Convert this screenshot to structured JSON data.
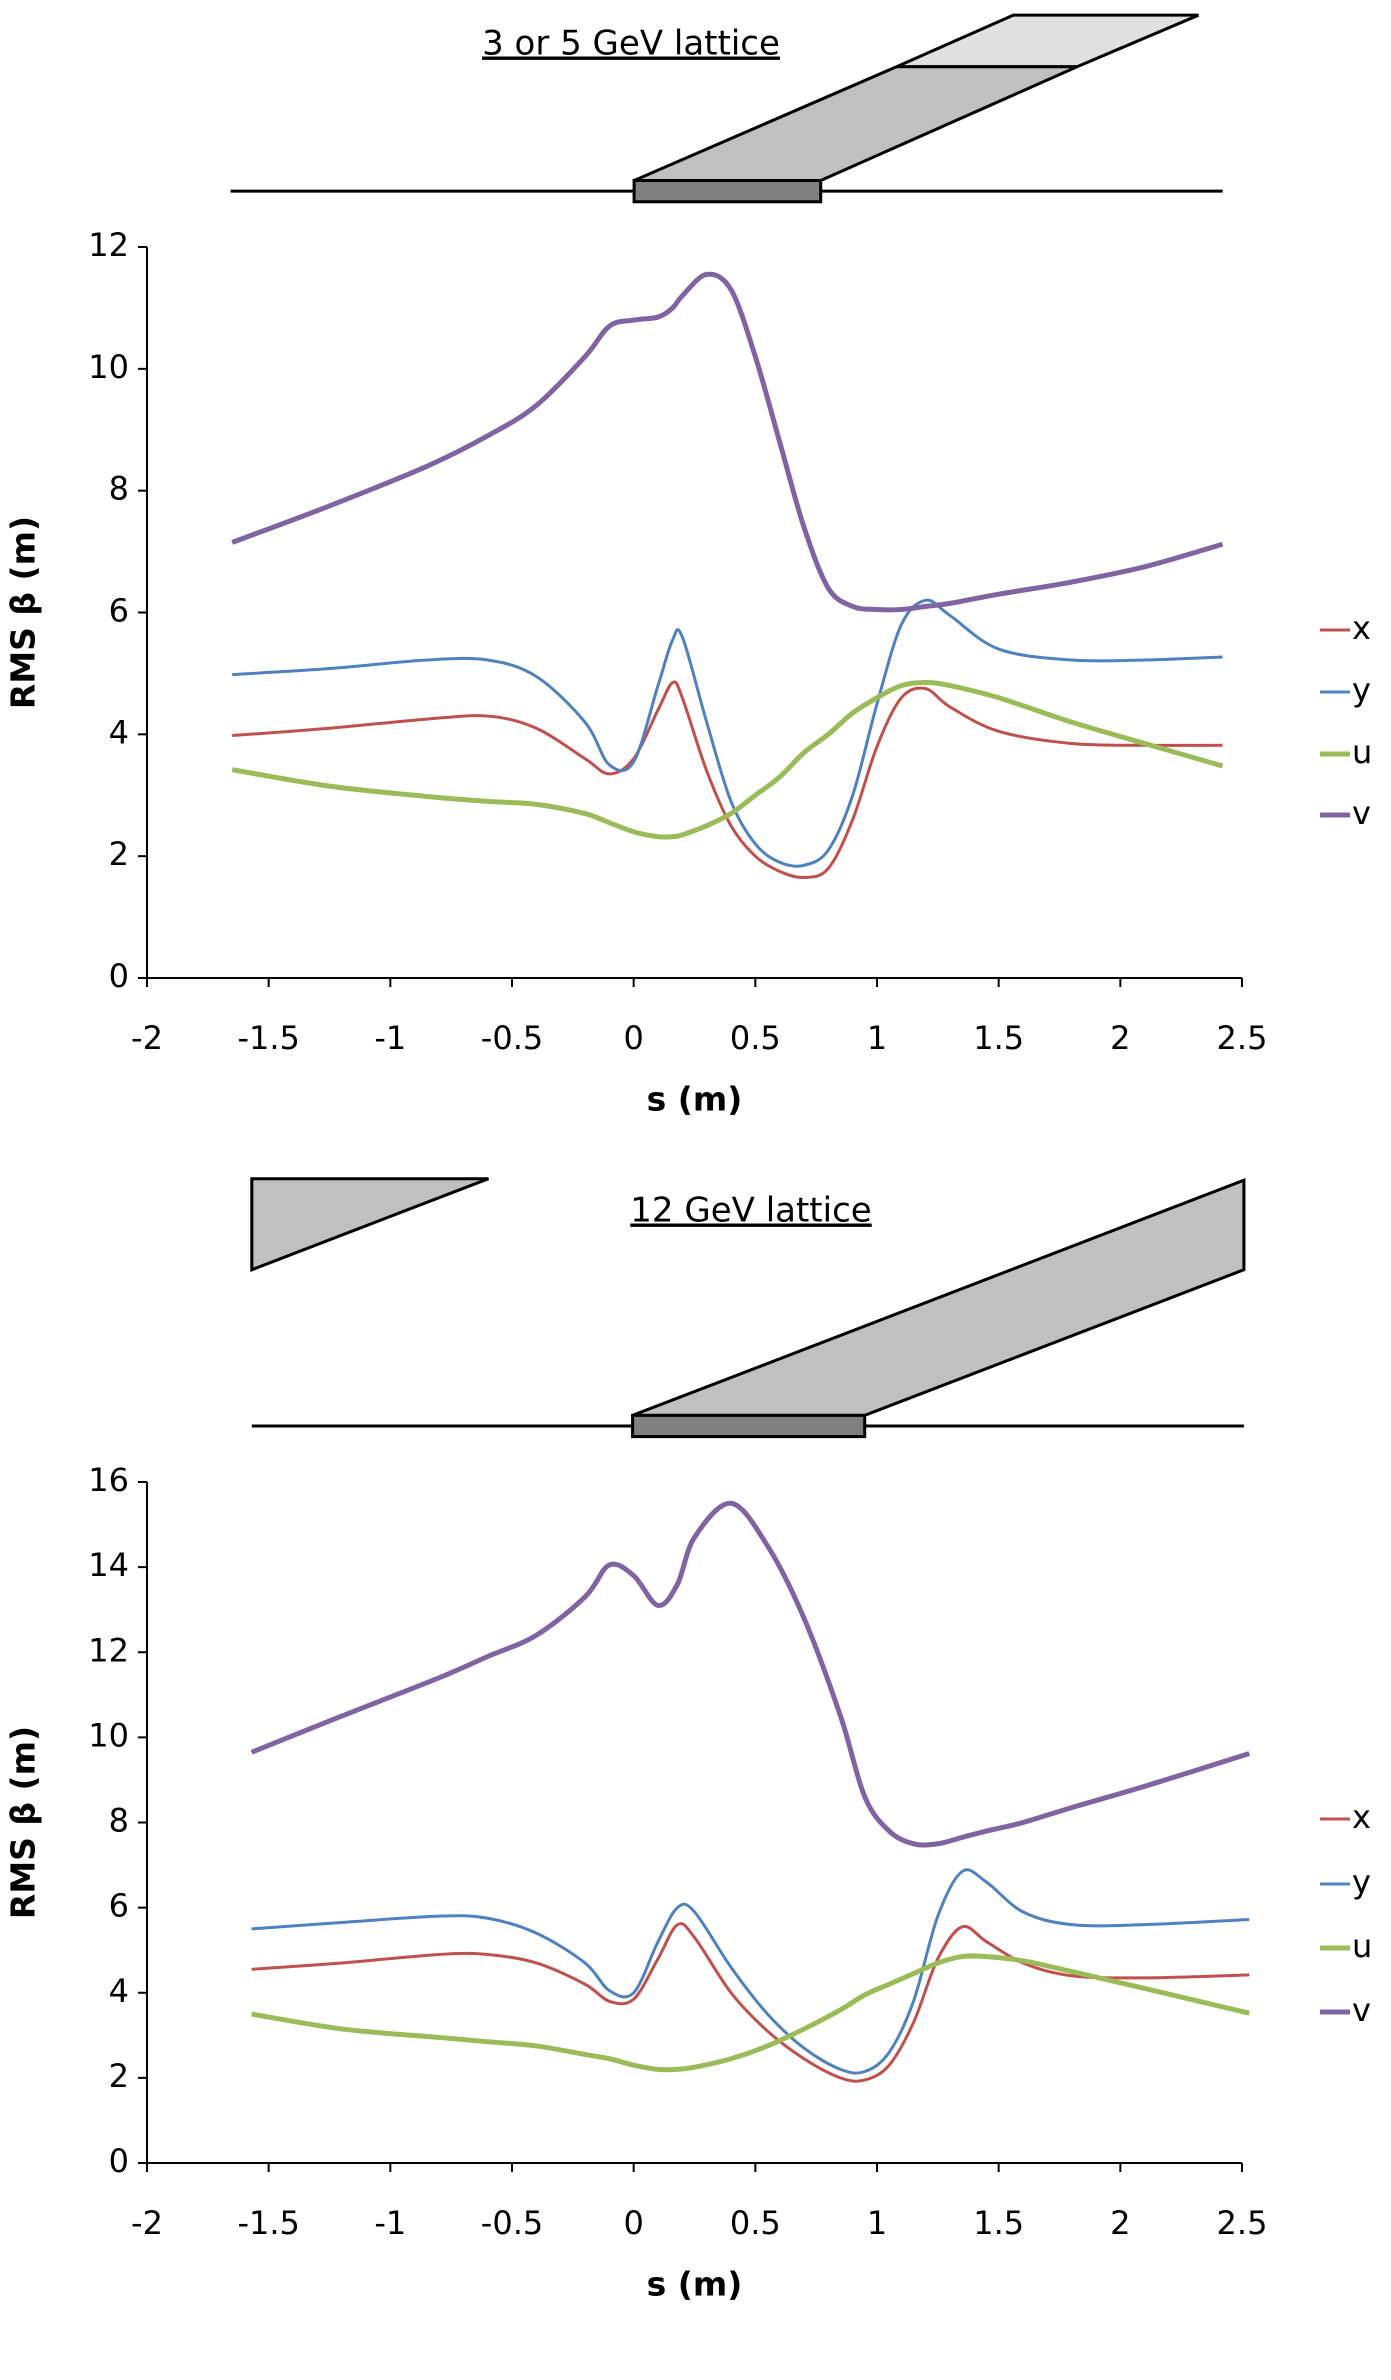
{
  "chart_data": [
    {
      "type": "line",
      "title": "3 or 5 GeV lattice",
      "xlabel": "s (m)",
      "ylabel": "RMS β (m)",
      "xlim": [
        -2,
        2.5
      ],
      "xticks": [
        -2,
        -1.5,
        -1,
        -0.5,
        0,
        0.5,
        1,
        1.5,
        2,
        2.5
      ],
      "ylim": [
        0,
        12
      ],
      "yticks": [
        0,
        2,
        4,
        6,
        8,
        10,
        12
      ],
      "x": [
        -1.65,
        -1.25,
        -0.85,
        -0.6,
        -0.4,
        -0.2,
        -0.1,
        0,
        0.1,
        0.16,
        0.2,
        0.3,
        0.4,
        0.5,
        0.6,
        0.7,
        0.8,
        0.9,
        1.0,
        1.1,
        1.2,
        1.3,
        1.5,
        1.8,
        2.1,
        2.42
      ],
      "series": [
        {
          "name": "x",
          "color": "#c0504d",
          "values": [
            3.98,
            4.1,
            4.25,
            4.3,
            4.1,
            3.6,
            3.35,
            3.6,
            4.4,
            4.85,
            4.6,
            3.4,
            2.5,
            2.0,
            1.75,
            1.65,
            1.8,
            2.6,
            3.8,
            4.6,
            4.75,
            4.45,
            4.05,
            3.85,
            3.82,
            3.82
          ]
        },
        {
          "name": "y",
          "color": "#4f81bd",
          "values": [
            4.98,
            5.08,
            5.22,
            5.22,
            4.95,
            4.2,
            3.5,
            3.55,
            4.8,
            5.55,
            5.6,
            4.2,
            2.9,
            2.2,
            1.9,
            1.85,
            2.1,
            3.0,
            4.5,
            5.8,
            6.2,
            5.95,
            5.4,
            5.22,
            5.22,
            5.27
          ]
        },
        {
          "name": "u",
          "color": "#9bbb59",
          "values": [
            3.42,
            3.15,
            2.98,
            2.9,
            2.85,
            2.7,
            2.55,
            2.4,
            2.32,
            2.32,
            2.35,
            2.5,
            2.7,
            3.0,
            3.3,
            3.7,
            4.0,
            4.35,
            4.6,
            4.8,
            4.85,
            4.8,
            4.6,
            4.2,
            3.85,
            3.48
          ]
        },
        {
          "name": "v",
          "color": "#8064a2",
          "values": [
            7.15,
            7.75,
            8.4,
            8.9,
            9.4,
            10.2,
            10.7,
            10.8,
            10.85,
            11.0,
            11.2,
            11.55,
            11.3,
            10.2,
            8.8,
            7.4,
            6.4,
            6.1,
            6.05,
            6.05,
            6.1,
            6.15,
            6.3,
            6.5,
            6.75,
            7.12
          ]
        }
      ]
    },
    {
      "type": "line",
      "title": "12 GeV lattice",
      "xlabel": "s (m)",
      "ylabel": "RMS β (m)",
      "xlim": [
        -2,
        2.5
      ],
      "xticks": [
        -2,
        -1.5,
        -1,
        -0.5,
        0,
        0.5,
        1,
        1.5,
        2,
        2.5
      ],
      "ylim": [
        0,
        16
      ],
      "yticks": [
        0,
        2,
        4,
        6,
        8,
        10,
        12,
        14,
        16
      ],
      "x": [
        -1.57,
        -1.2,
        -0.8,
        -0.6,
        -0.4,
        -0.2,
        -0.1,
        0,
        0.1,
        0.18,
        0.25,
        0.4,
        0.55,
        0.7,
        0.85,
        0.95,
        1.05,
        1.15,
        1.25,
        1.35,
        1.45,
        1.6,
        1.8,
        2.1,
        2.53
      ],
      "series": [
        {
          "name": "x",
          "color": "#c0504d",
          "values": [
            4.55,
            4.7,
            4.9,
            4.9,
            4.7,
            4.2,
            3.8,
            3.85,
            4.8,
            5.6,
            5.3,
            4.0,
            3.1,
            2.45,
            2.0,
            1.95,
            2.3,
            3.3,
            4.8,
            5.55,
            5.2,
            4.7,
            4.4,
            4.35,
            4.42
          ]
        },
        {
          "name": "y",
          "color": "#4f81bd",
          "values": [
            5.5,
            5.65,
            5.8,
            5.75,
            5.4,
            4.7,
            4.05,
            4.0,
            5.2,
            6.0,
            5.9,
            4.6,
            3.5,
            2.7,
            2.2,
            2.15,
            2.6,
            3.8,
            5.8,
            6.85,
            6.6,
            5.9,
            5.6,
            5.6,
            5.72
          ]
        },
        {
          "name": "u",
          "color": "#9bbb59",
          "values": [
            3.5,
            3.15,
            2.95,
            2.85,
            2.75,
            2.55,
            2.45,
            2.3,
            2.2,
            2.2,
            2.25,
            2.45,
            2.75,
            3.15,
            3.6,
            3.95,
            4.2,
            4.45,
            4.7,
            4.85,
            4.85,
            4.75,
            4.5,
            4.1,
            3.52
          ]
        },
        {
          "name": "v",
          "color": "#8064a2",
          "values": [
            9.65,
            10.5,
            11.4,
            11.9,
            12.4,
            13.3,
            14.05,
            13.8,
            13.1,
            13.6,
            14.7,
            15.5,
            14.5,
            12.8,
            10.5,
            8.6,
            7.8,
            7.5,
            7.5,
            7.65,
            7.8,
            8.0,
            8.35,
            8.85,
            9.62
          ]
        }
      ]
    }
  ]
}
